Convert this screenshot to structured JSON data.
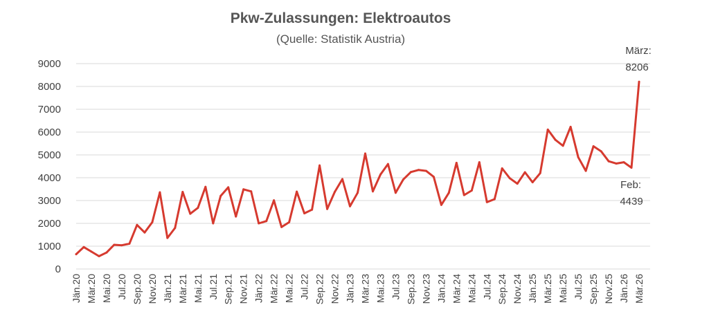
{
  "chart_data": {
    "type": "line",
    "title": "Pkw-Zulassungen: Elektroautos",
    "subtitle": "(Quelle: Statistik Austria)",
    "xlabel": "",
    "ylabel": "",
    "ylim": [
      0,
      9000
    ],
    "yticks": [
      0,
      1000,
      2000,
      3000,
      4000,
      5000,
      6000,
      7000,
      8000,
      9000
    ],
    "grid": true,
    "legend": "none",
    "color": "#d63a2f",
    "x": [
      "Jän.20",
      "Feb.20",
      "Mär.20",
      "Apr.20",
      "Mai.20",
      "Jun.20",
      "Jul.20",
      "Aug.20",
      "Sep.20",
      "Okt.20",
      "Nov.20",
      "Dez.20",
      "Jän.21",
      "Feb.21",
      "Mär.21",
      "Apr.21",
      "Mai.21",
      "Jun.21",
      "Jul.21",
      "Aug.21",
      "Sep.21",
      "Okt.21",
      "Nov.21",
      "Dez.21",
      "Jän.22",
      "Feb.22",
      "Mär.22",
      "Apr.22",
      "Mai.22",
      "Jun.22",
      "Jul.22",
      "Aug.22",
      "Sep.22",
      "Okt.22",
      "Nov.22",
      "Dez.22",
      "Jän.23",
      "Feb.23",
      "Mär.23",
      "Apr.23",
      "Mai.23",
      "Jun.23",
      "Jul.23",
      "Aug.23",
      "Sep.23",
      "Okt.23",
      "Nov.23",
      "Dez.23",
      "Jän.24",
      "Feb.24",
      "Mär.24",
      "Apr.24",
      "Mai.24",
      "Jun.24",
      "Jul.24",
      "Aug.24",
      "Sep.24",
      "Okt.24",
      "Nov.24",
      "Dez.24",
      "Jän.25",
      "Feb.25",
      "Mär.25",
      "Apr.25",
      "Mai.25",
      "Jun.25",
      "Jul.25",
      "Aug.25",
      "Sep.25",
      "Okt.25",
      "Nov.25",
      "Dez.25",
      "Jän.26",
      "Feb.26",
      "Mär.26"
    ],
    "xtick_labels": [
      "Jän.20",
      "Mär.20",
      "Mai.20",
      "Jul.20",
      "Sep.20",
      "Nov.20",
      "Jän.21",
      "Mär.21",
      "Mai.21",
      "Jul.21",
      "Sep.21",
      "Nov.21",
      "Jän.22",
      "Mär.22",
      "Mai.22",
      "Jul.22",
      "Sep.22",
      "Nov.22",
      "Jän.23",
      "Mär.23",
      "Mai.23",
      "Jul.23",
      "Sep.23",
      "Nov.23",
      "Jän.24",
      "Mär.24",
      "Mai.24",
      "Jul.24",
      "Sep.24",
      "Nov.24",
      "Jän.25",
      "Mär.25",
      "Mai.25",
      "Jul.25",
      "Sep.25",
      "Nov.25",
      "Jän.26",
      "Mär.26"
    ],
    "series": [
      {
        "values": [
          650,
          960,
          760,
          560,
          720,
          1060,
          1040,
          1110,
          1930,
          1600,
          2050,
          3360,
          1360,
          1800,
          3380,
          2420,
          2680,
          3600,
          2000,
          3200,
          3580,
          2300,
          3490,
          3400,
          2000,
          2100,
          3010,
          1840,
          2050,
          3390,
          2440,
          2600,
          4540,
          2630,
          3380,
          3940,
          2750,
          3340,
          5060,
          3400,
          4140,
          4600,
          3340,
          3920,
          4250,
          4340,
          4300,
          4040,
          2810,
          3340,
          4650,
          3240,
          3440,
          4680,
          2930,
          3060,
          4410,
          3980,
          3740,
          4240,
          3800,
          4200,
          6110,
          5660,
          5400,
          6230,
          4900,
          4300,
          5380,
          5160,
          4720,
          4620,
          4680,
          4439,
          8206
        ]
      }
    ],
    "annotations": [
      {
        "label": "März:",
        "value": "8206",
        "x": "Mär.26"
      },
      {
        "label": "Feb:",
        "value": "4439",
        "x": "Feb.26"
      }
    ]
  }
}
